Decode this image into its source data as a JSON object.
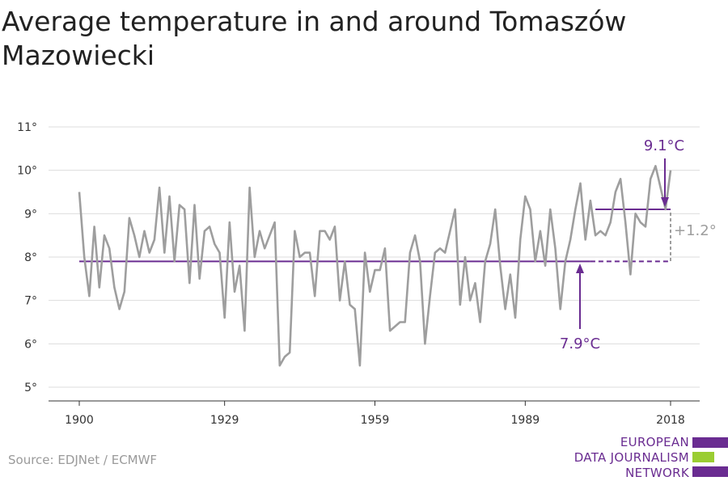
{
  "title": "Average temperature in and around Tomaszów Mazowiecki",
  "source": "Source: EDJNet / ECMWF",
  "logo": {
    "lines": [
      "EUROPEAN",
      "DATA JOURNALISM",
      "NETWORK"
    ],
    "colors": [
      "#6a2c91",
      "#9acd32",
      "#6a2c91"
    ]
  },
  "colors": {
    "series": "#9e9e9e",
    "accent": "#6a2c91",
    "grid": "#dddddd",
    "delta": "#9e9e9e"
  },
  "chart_data": {
    "type": "line",
    "title": "Average temperature in and around Tomaszów Mazowiecki",
    "xlabel": "",
    "ylabel": "",
    "xlim": [
      1900,
      2018
    ],
    "ylim": [
      5,
      11
    ],
    "grid": true,
    "x_ticks": [
      1900,
      1929,
      1959,
      1989,
      2018
    ],
    "x_tick_labels": [
      "1900",
      "1929",
      "1959",
      "1989",
      "2018"
    ],
    "y_ticks": [
      5,
      6,
      7,
      8,
      9,
      10,
      11
    ],
    "y_tick_labels": [
      "5°",
      "6°",
      "7°",
      "8°",
      "9°",
      "10°",
      "11°"
    ],
    "series": [
      {
        "x": [
          1900,
          1901,
          1902,
          1903,
          1904,
          1905,
          1906,
          1907,
          1908,
          1909,
          1910,
          1911,
          1912,
          1913,
          1914,
          1915,
          1916,
          1917,
          1918,
          1919,
          1920,
          1921,
          1922,
          1923,
          1924,
          1925,
          1926,
          1927,
          1928,
          1929,
          1930,
          1931,
          1932,
          1933,
          1934,
          1935,
          1936,
          1937,
          1938,
          1939,
          1940,
          1941,
          1942,
          1943,
          1944,
          1945,
          1946,
          1947,
          1948,
          1949,
          1950,
          1951,
          1952,
          1953,
          1954,
          1955,
          1956,
          1957,
          1958,
          1959,
          1960,
          1961,
          1962,
          1963,
          1964,
          1965,
          1966,
          1967,
          1968,
          1969,
          1970,
          1971,
          1972,
          1973,
          1974,
          1975,
          1976,
          1977,
          1978,
          1979,
          1980,
          1981,
          1982,
          1983,
          1984,
          1985,
          1986,
          1987,
          1988,
          1989,
          1990,
          1991,
          1992,
          1993,
          1994,
          1995,
          1996,
          1997,
          1998,
          1999,
          2000,
          2001,
          2002,
          2003,
          2004,
          2005,
          2006,
          2007,
          2008,
          2009,
          2010,
          2011,
          2012,
          2013,
          2014,
          2015,
          2016,
          2017,
          2018
        ],
        "values": [
          9.5,
          8.0,
          7.1,
          8.7,
          7.3,
          8.5,
          8.2,
          7.3,
          6.8,
          7.2,
          8.9,
          8.5,
          8.0,
          8.6,
          8.1,
          8.4,
          9.6,
          8.1,
          9.4,
          7.9,
          9.2,
          9.1,
          7.4,
          9.2,
          7.5,
          8.6,
          8.7,
          8.3,
          8.1,
          6.6,
          8.8,
          7.2,
          7.8,
          6.3,
          9.6,
          8.0,
          8.6,
          8.2,
          8.5,
          8.8,
          5.5,
          5.7,
          5.8,
          8.6,
          8.0,
          8.1,
          8.1,
          7.1,
          8.6,
          8.6,
          8.4,
          8.7,
          7.0,
          7.9,
          6.9,
          6.8,
          5.5,
          8.1,
          7.2,
          7.7,
          7.7,
          8.2,
          6.3,
          6.4,
          6.5,
          6.5,
          8.1,
          8.5,
          7.9,
          6.0,
          7.1,
          8.1,
          8.2,
          8.1,
          8.6,
          9.1,
          6.9,
          8.0,
          7.0,
          7.4,
          6.5,
          7.9,
          8.3,
          9.1,
          7.8,
          6.8,
          7.6,
          6.6,
          8.4,
          9.4,
          9.1,
          7.9,
          8.6,
          7.8,
          9.1,
          8.2,
          6.8,
          7.9,
          8.4,
          9.1,
          9.7,
          8.4,
          9.3,
          8.5,
          8.6,
          8.5,
          8.8,
          9.5,
          9.8,
          8.8,
          7.6,
          9.0,
          8.8,
          8.7,
          9.8,
          10.1,
          9.6,
          9.1,
          10.0
        ]
      }
    ],
    "annotations": {
      "baseline": {
        "value": 7.9,
        "label": "7.9°C",
        "x_from": 1900,
        "x_solid_to": 2002,
        "x_to": 2018
      },
      "recent": {
        "value": 9.1,
        "label": "9.1°C",
        "x_from": 2003,
        "x_to": 2018
      },
      "difference": {
        "label": "+1.2°"
      }
    }
  }
}
